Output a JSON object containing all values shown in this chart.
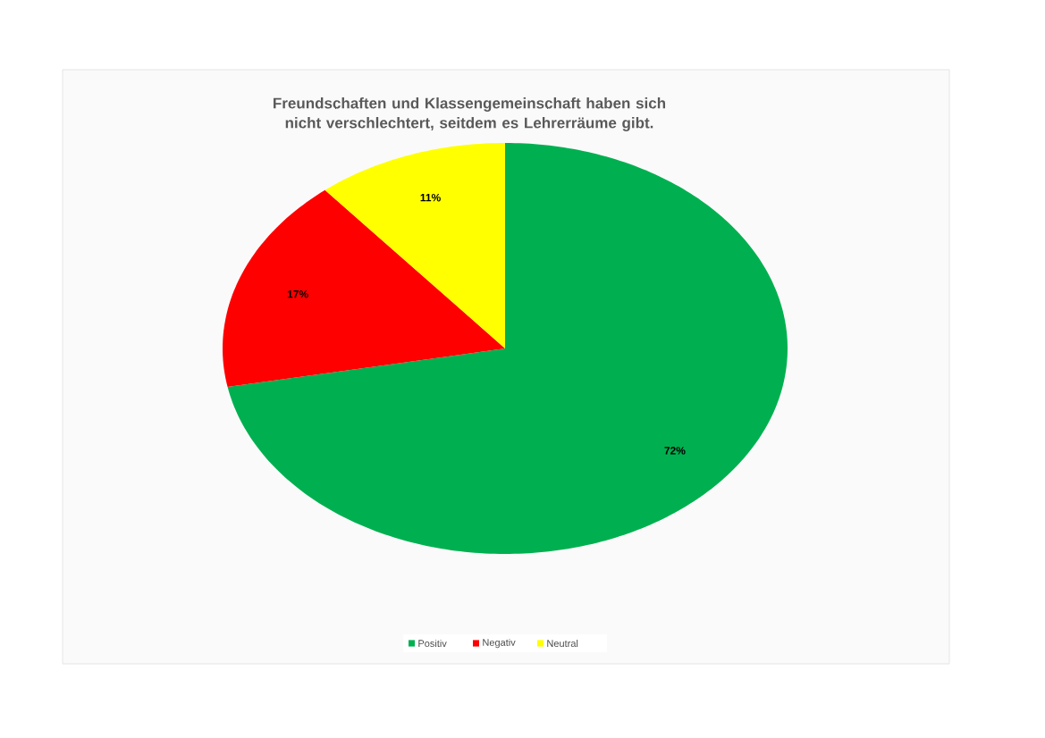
{
  "chart_data": {
    "type": "pie",
    "title": "Freundschaften und Klassengemeinschaft haben sich nicht verschlechtert, seitdem es Lehrerräume gibt.",
    "categories": [
      "Positiv",
      "Negativ",
      "Neutral"
    ],
    "values": [
      72,
      17,
      11
    ],
    "colors": [
      "#00b050",
      "#ff0000",
      "#ffff00"
    ],
    "value_labels": [
      "72%",
      "17%",
      "11%"
    ],
    "legend": "bottom"
  }
}
